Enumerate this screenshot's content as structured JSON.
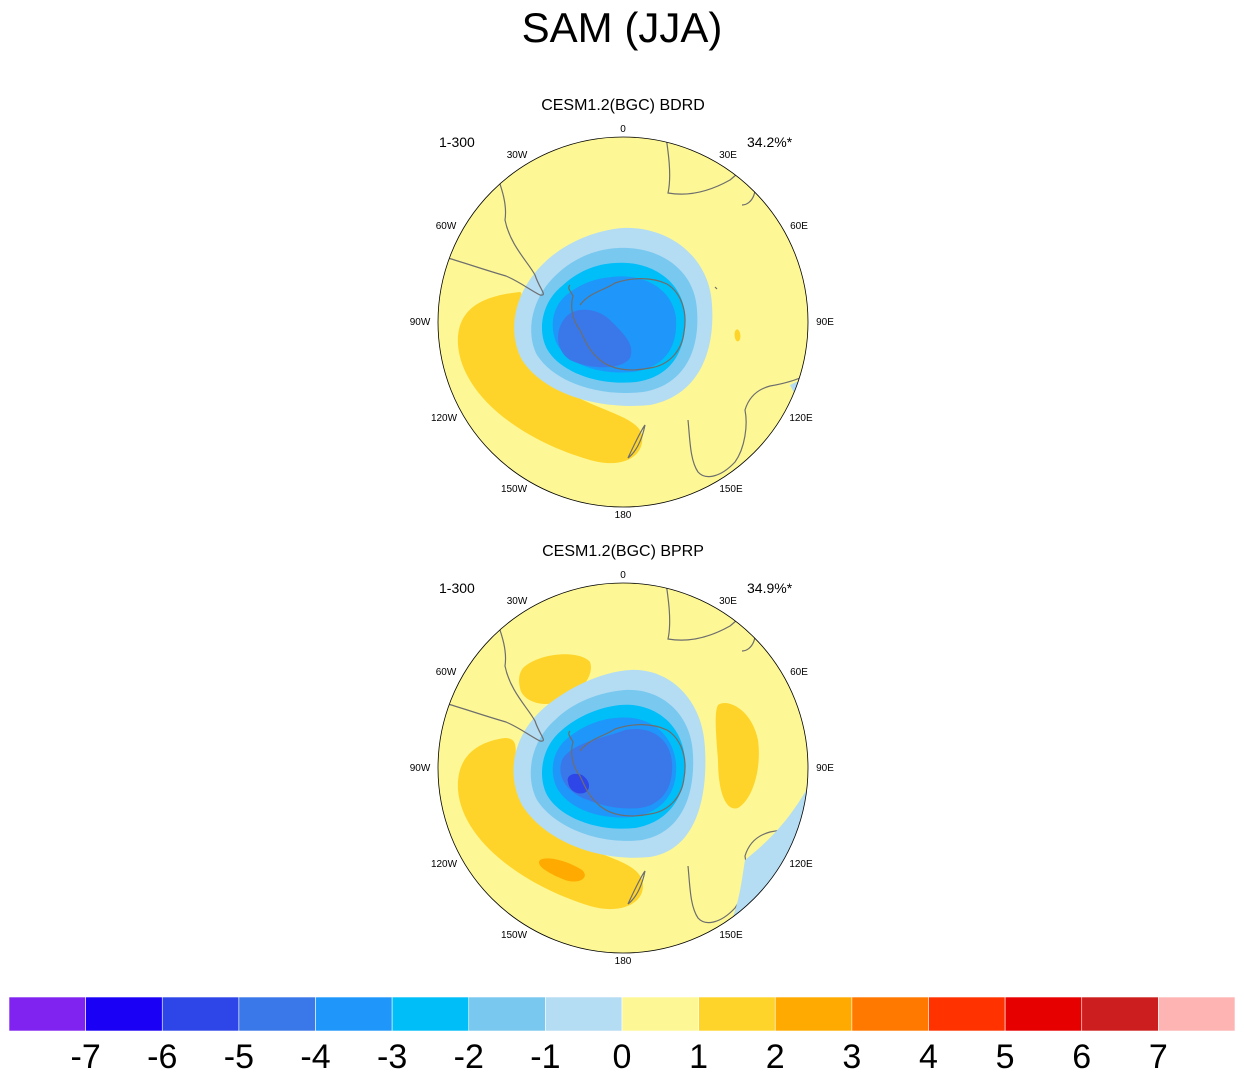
{
  "chart_data": {
    "type": "heatmap",
    "title": "SAM (JJA)",
    "projection": "south-polar-stereographic",
    "panels": [
      {
        "title": "CESM1.2(BGC) BDRD",
        "left_label": "1-300",
        "right_label": "34.2%*",
        "longitude_labels": [
          "0",
          "30E",
          "60E",
          "90E",
          "120E",
          "150E",
          "180",
          "150W",
          "120W",
          "90W",
          "60W",
          "30W"
        ],
        "minimum_value": -5,
        "maximum_value": 1
      },
      {
        "title": "CESM1.2(BGC) BPRP",
        "left_label": "1-300",
        "right_label": "34.9%*",
        "longitude_labels": [
          "0",
          "30E",
          "60E",
          "90E",
          "120E",
          "150E",
          "180",
          "150W",
          "120W",
          "90W",
          "60W",
          "30W"
        ],
        "minimum_value": -6,
        "maximum_value": 2
      }
    ],
    "colorbar": {
      "labels": [
        "-7",
        "-6",
        "-5",
        "-4",
        "-3",
        "-2",
        "-1",
        "0",
        "1",
        "2",
        "3",
        "4",
        "5",
        "6",
        "7"
      ],
      "colors": [
        "#8022f0",
        "#1a00f5",
        "#2e46e8",
        "#3a78ea",
        "#1e96fa",
        "#00bef8",
        "#78c8f0",
        "#b4dcf2",
        "#fdf895",
        "#ffd42a",
        "#ffaa00",
        "#ff7800",
        "#ff3200",
        "#e60000",
        "#cc1e1e",
        "#ffb4b4"
      ]
    }
  },
  "colors": {
    "land_outline": "#6e6e6e",
    "circle_outline": "#000000"
  }
}
